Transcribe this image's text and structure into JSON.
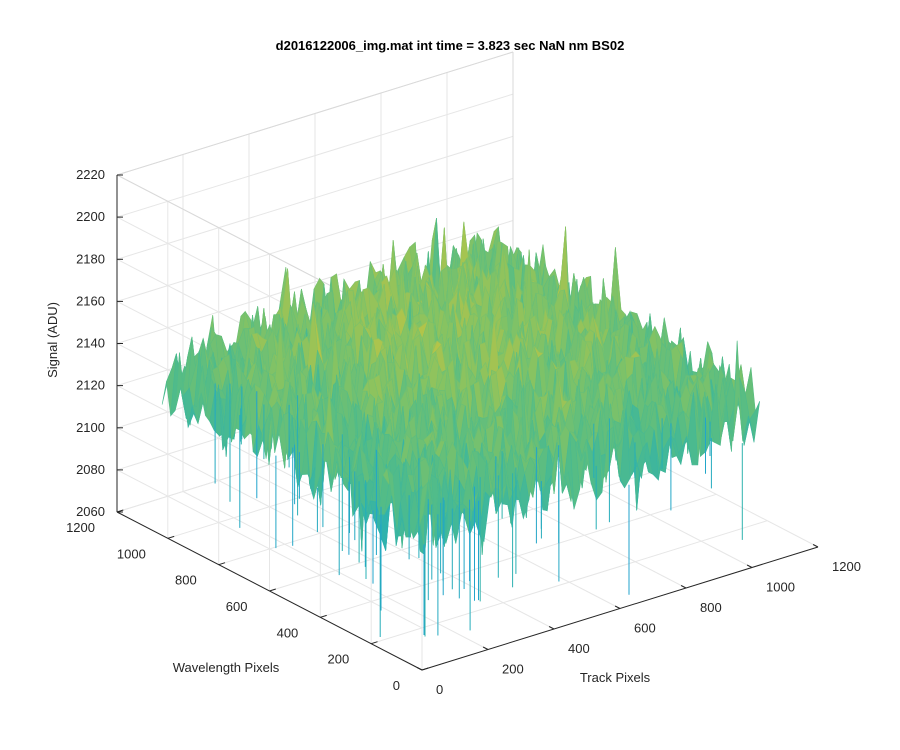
{
  "chart_data": {
    "type": "surface",
    "title": "d2016122006_img.mat int time = 3.823 sec  NaN nm BS02",
    "xlabel": "Track Pixels",
    "ylabel": "Wavelength Pixels",
    "zlabel": "Signal (ADU)",
    "xlim": [
      0,
      1200
    ],
    "ylim": [
      0,
      1200
    ],
    "zlim": [
      2060,
      2220
    ],
    "xticks": [
      0,
      200,
      400,
      600,
      800,
      1000,
      1200
    ],
    "yticks": [
      0,
      200,
      400,
      600,
      800,
      1000,
      1200
    ],
    "zticks": [
      2060,
      2080,
      2100,
      2120,
      2140,
      2160,
      2180,
      2200,
      2220
    ],
    "grid": true,
    "colormap": "parula",
    "surface_extent": {
      "x": [
        1,
        1024
      ],
      "y": [
        1,
        1024
      ]
    },
    "surface_level": {
      "mean": 2135,
      "min_approx": 2065,
      "max_approx": 2210
    },
    "colors": {
      "low": "#1f9fd6",
      "mid": "#72bf6e",
      "high": "#f2c43a",
      "grid": "#e6e6e6",
      "axis": "#262626"
    }
  }
}
